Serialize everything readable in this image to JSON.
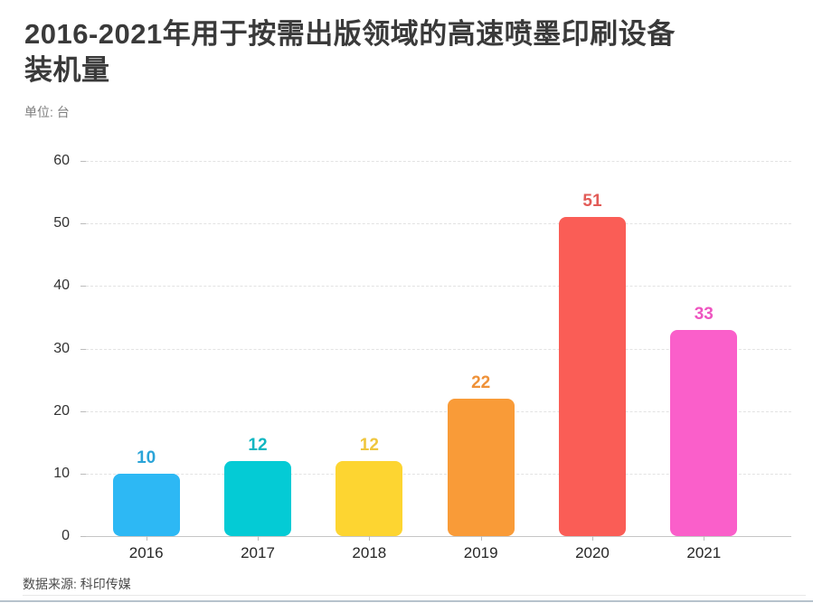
{
  "header": {
    "title": "2016-2021年用于按需出版领域的高速喷墨印刷设备装机量",
    "title_line1": "2016-2021年用于按需出版领域的高速喷墨印刷设备",
    "title_line2": "装机量",
    "unit_label": "单位: 台"
  },
  "footer": {
    "source_label": "数据来源: 科印传媒"
  },
  "chart_data": {
    "type": "bar",
    "title": "2016-2021年用于按需出版领域的高速喷墨印刷设备装机量",
    "unit": "台",
    "categories": [
      "2016",
      "2017",
      "2018",
      "2019",
      "2020",
      "2021"
    ],
    "values": [
      10,
      12,
      12,
      22,
      51,
      33
    ],
    "bar_colors": [
      "#2db8f4",
      "#04cbd5",
      "#fdd531",
      "#f99b38",
      "#fa5d56",
      "#fa5fca"
    ],
    "value_label_colors": [
      "#2aa4d8",
      "#10b6c1",
      "#efc63e",
      "#ef9138",
      "#e25b57",
      "#ee55c0"
    ],
    "xlabel": "",
    "ylabel": "",
    "ylim": [
      0,
      60
    ],
    "yticks": [
      0,
      10,
      20,
      30,
      40,
      50,
      60
    ],
    "grid": "horizontal-dashed",
    "legend_position": "none",
    "source": "数据来源: 科印传媒"
  }
}
